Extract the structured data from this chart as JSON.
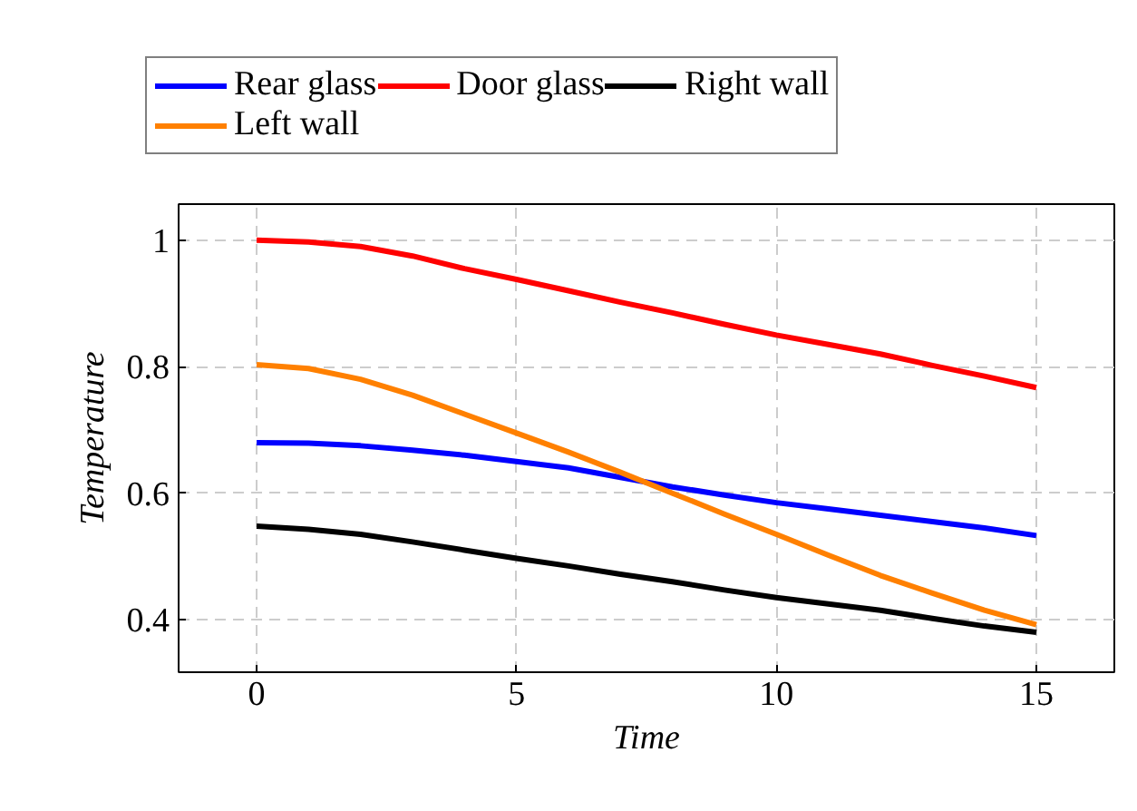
{
  "chart_data": {
    "type": "line",
    "xlabel": "Time",
    "ylabel": "Temperature",
    "x": [
      0,
      1,
      2,
      3,
      4,
      5,
      6,
      7,
      8,
      9,
      10,
      11,
      12,
      13,
      14,
      15
    ],
    "series": [
      {
        "name": "Rear glass",
        "color": "#0000ff",
        "values": [
          0.68,
          0.679,
          0.675,
          0.668,
          0.66,
          0.65,
          0.64,
          0.625,
          0.61,
          0.597,
          0.585,
          0.575,
          0.565,
          0.555,
          0.545,
          0.533
        ]
      },
      {
        "name": "Door glass",
        "color": "#ff0000",
        "values": [
          1.0,
          0.997,
          0.99,
          0.975,
          0.955,
          0.938,
          0.92,
          0.902,
          0.885,
          0.867,
          0.85,
          0.835,
          0.82,
          0.802,
          0.785,
          0.767
        ]
      },
      {
        "name": "Right wall",
        "color": "#000000",
        "values": [
          0.548,
          0.543,
          0.535,
          0.523,
          0.51,
          0.497,
          0.485,
          0.472,
          0.46,
          0.447,
          0.435,
          0.425,
          0.415,
          0.402,
          0.39,
          0.38
        ]
      },
      {
        "name": "Left wall",
        "color": "#ff8000",
        "values": [
          0.803,
          0.797,
          0.78,
          0.755,
          0.725,
          0.695,
          0.665,
          0.633,
          0.6,
          0.567,
          0.535,
          0.502,
          0.47,
          0.442,
          0.415,
          0.392
        ]
      }
    ],
    "xlim": [
      -1.5,
      16.5
    ],
    "ylim": [
      0.317,
      1.057
    ],
    "xticks": [
      0,
      5,
      10,
      15
    ],
    "yticks": [
      0.4,
      0.6,
      0.8,
      1
    ],
    "grid": true,
    "legend": "top",
    "line_style": "solid",
    "marker": "none"
  }
}
